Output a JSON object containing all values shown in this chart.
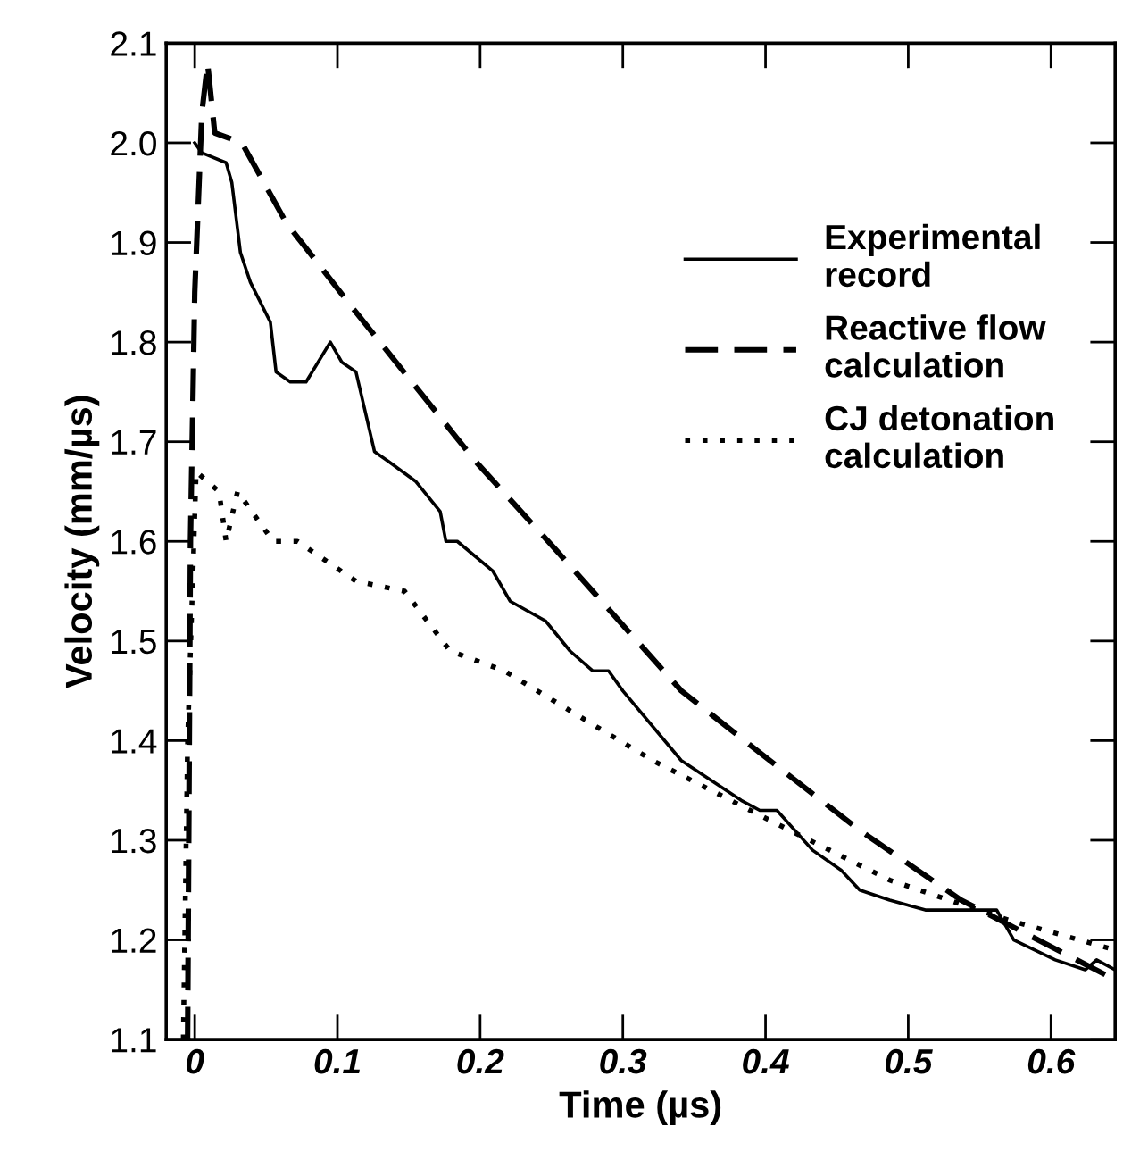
{
  "chart_data": {
    "type": "line",
    "xlabel": "Time (µs)",
    "ylabel": "Velocity (mm/µs)",
    "xlim": [
      -0.02,
      0.645
    ],
    "ylim": [
      1.1,
      2.1
    ],
    "xticks": [
      0,
      0.1,
      0.2,
      0.3,
      0.4,
      0.5,
      0.6
    ],
    "yticks": [
      1.1,
      1.2,
      1.3,
      1.4,
      1.5,
      1.6,
      1.7,
      1.8,
      1.9,
      {
        "value": 2,
        "label": "2.0"
      },
      2.1
    ],
    "grid": false,
    "legend": "top right",
    "series": [
      {
        "name": "Experimental\nrecord",
        "color": "#000000",
        "line_style": "solid",
        "x": [
          0.0,
          0.005,
          0.022,
          0.026,
          0.032,
          0.039,
          0.053,
          0.057,
          0.067,
          0.078,
          0.095,
          0.103,
          0.113,
          0.126,
          0.136,
          0.155,
          0.172,
          0.176,
          0.184,
          0.209,
          0.221,
          0.246,
          0.263,
          0.279,
          0.29,
          0.3,
          0.341,
          0.362,
          0.383,
          0.396,
          0.408,
          0.433,
          0.453,
          0.466,
          0.487,
          0.512,
          0.54,
          0.562,
          0.574,
          0.603,
          0.624,
          0.632,
          0.645
        ],
        "values": [
          2.0,
          1.99,
          1.98,
          1.96,
          1.89,
          1.86,
          1.82,
          1.77,
          1.76,
          1.76,
          1.8,
          1.78,
          1.77,
          1.69,
          1.68,
          1.66,
          1.63,
          1.6,
          1.6,
          1.57,
          1.54,
          1.52,
          1.49,
          1.47,
          1.47,
          1.45,
          1.38,
          1.36,
          1.34,
          1.33,
          1.33,
          1.29,
          1.27,
          1.25,
          1.24,
          1.23,
          1.23,
          1.23,
          1.2,
          1.18,
          1.17,
          1.18,
          1.17
        ]
      },
      {
        "name": "Reactive flow\ncalculation",
        "color": "#000000",
        "line_style": "dashed",
        "x": [
          -0.005,
          -0.003,
          0.0,
          0.005,
          0.009,
          0.014,
          0.033,
          0.064,
          0.113,
          0.197,
          0.254,
          0.341,
          0.403,
          0.466,
          0.537,
          0.645
        ],
        "values": [
          1.1,
          1.6,
          1.85,
          2.03,
          2.08,
          2.01,
          2.0,
          1.92,
          1.83,
          1.68,
          1.59,
          1.45,
          1.38,
          1.31,
          1.24,
          1.16
        ]
      },
      {
        "name": "CJ detonation\ncalculation",
        "color": "#000000",
        "line_style": "dotted",
        "x": [
          -0.008,
          -0.005,
          0.001,
          0.017,
          0.022,
          0.03,
          0.055,
          0.072,
          0.113,
          0.147,
          0.179,
          0.217,
          0.263,
          0.321,
          0.403,
          0.487,
          0.57,
          0.645
        ],
        "values": [
          1.1,
          1.4,
          1.67,
          1.65,
          1.6,
          1.65,
          1.6,
          1.6,
          1.56,
          1.55,
          1.49,
          1.47,
          1.43,
          1.38,
          1.32,
          1.26,
          1.22,
          1.19
        ]
      }
    ]
  }
}
